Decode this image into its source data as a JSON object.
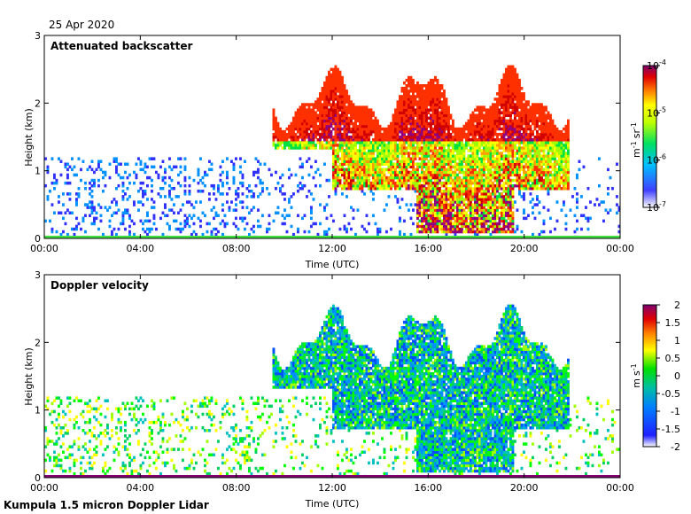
{
  "header": {
    "date": "25 Apr 2020"
  },
  "footer": {
    "instrument": "Kumpula 1.5 micron Doppler Lidar"
  },
  "chart_data": [
    {
      "type": "heatmap",
      "title": "Attenuated backscatter",
      "xlabel": "Time (UTC)",
      "ylabel": "Height (km)",
      "xticks": [
        "00:00",
        "04:00",
        "08:00",
        "12:00",
        "16:00",
        "20:00",
        "00:00"
      ],
      "yticks": [
        "0",
        "1",
        "2",
        "3"
      ],
      "xlim": [
        0,
        24
      ],
      "ylim": [
        0,
        3
      ],
      "colorbar": {
        "scale": "log",
        "range": [
          1e-07,
          0.0001
        ],
        "ticks": [
          {
            "base": "10",
            "exp": "-4"
          },
          {
            "base": "10",
            "exp": "-5"
          },
          {
            "base": "10",
            "exp": "-6"
          },
          {
            "base": "10",
            "exp": "-7"
          }
        ],
        "unit": {
          "m": "m",
          "m_exp": "-1",
          "sr": "sr",
          "sr_exp": "-1"
        }
      }
    },
    {
      "type": "heatmap",
      "title": "Doppler velocity",
      "xlabel": "Time (UTC)",
      "ylabel": "Height (km)",
      "xticks": [
        "00:00",
        "04:00",
        "08:00",
        "12:00",
        "16:00",
        "20:00",
        "00:00"
      ],
      "yticks": [
        "0",
        "1",
        "2",
        "3"
      ],
      "xlim": [
        0,
        24
      ],
      "ylim": [
        0,
        3
      ],
      "colorbar": {
        "scale": "linear",
        "range": [
          -2,
          2
        ],
        "ticks": [
          "2",
          "1.5",
          "1",
          "0.5",
          "0",
          "-0.5",
          "-1",
          "-1.5",
          "-2"
        ],
        "unit": {
          "m": "m",
          "s": "s",
          "s_exp": "-1"
        }
      }
    }
  ]
}
